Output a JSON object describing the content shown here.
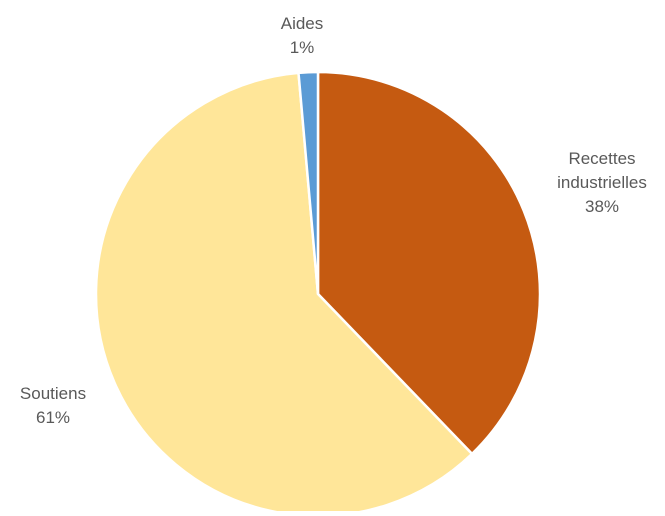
{
  "chart_data": {
    "type": "pie",
    "title": "",
    "start_angle_deg": 0,
    "direction": "clockwise",
    "slices": [
      {
        "label_lines": [
          "Recettes",
          "industrielles"
        ],
        "percent_label": "38%",
        "value": 37.8,
        "color": "#C55A11"
      },
      {
        "label_lines": [
          "Soutiens"
        ],
        "percent_label": "61%",
        "value": 60.8,
        "color": "#FFE699"
      },
      {
        "label_lines": [
          "Aides"
        ],
        "percent_label": "1%",
        "value": 1.4,
        "color": "#5B9BD5"
      }
    ],
    "legend": "none"
  }
}
